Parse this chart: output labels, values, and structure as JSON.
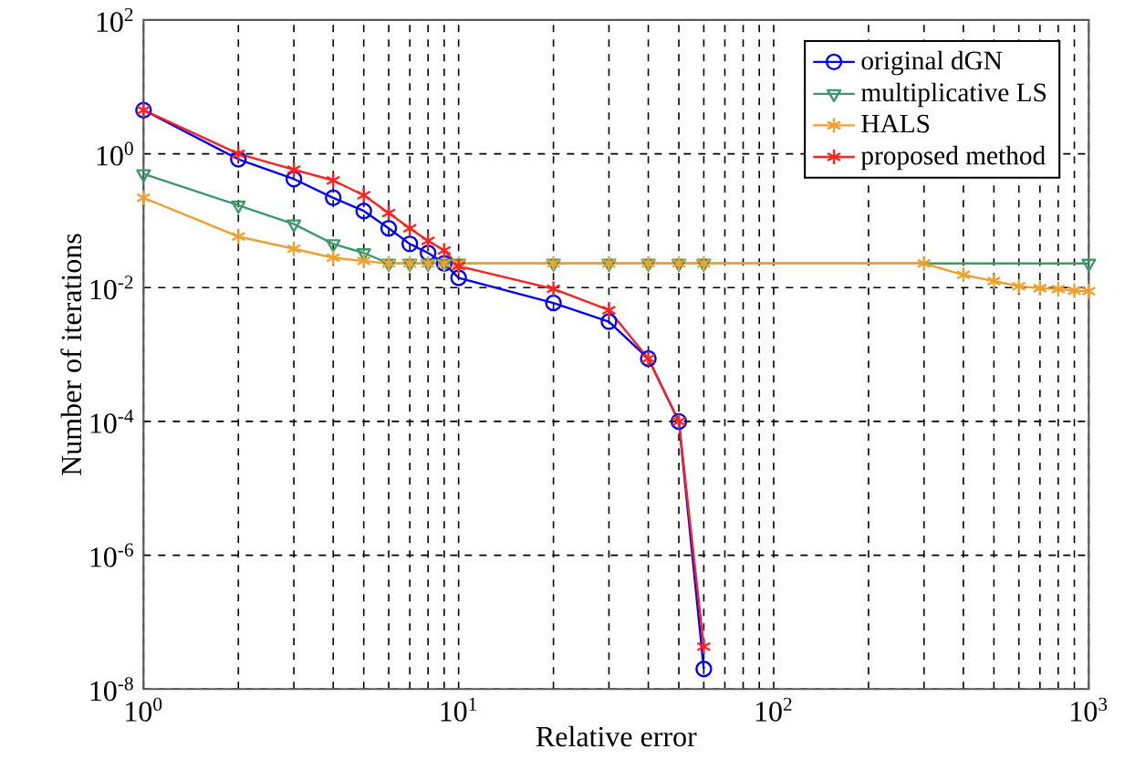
{
  "chart_data": {
    "type": "line",
    "xlabel": "Relative error",
    "ylabel": "Number of iterations",
    "log": "xy",
    "grid": true,
    "legend": "top right",
    "xlim": [
      1,
      1000
    ],
    "ylim": [
      1e-08,
      100
    ],
    "xticks": [
      {
        "value": 1,
        "label": "10$^{0}$"
      },
      {
        "value": 10,
        "label": "10$^{1}$"
      },
      {
        "value": 100,
        "label": "10$^{2}$"
      },
      {
        "value": 1000,
        "label": "10$^{3}$"
      }
    ],
    "yticks": [
      {
        "value": 1e-08,
        "label": "10$^{-8}$"
      },
      {
        "value": 1e-06,
        "label": "10$^{-6}$"
      },
      {
        "value": 0.0001,
        "label": "10$^{-4}$"
      },
      {
        "value": 0.01,
        "label": "10$^{-2}$"
      },
      {
        "value": 1,
        "label": "10$^{0}$"
      },
      {
        "value": 100,
        "label": "10$^{2}$"
      }
    ],
    "series": [
      {
        "name": "original dGN",
        "color": "#0000ff",
        "marker": "circle",
        "x": [
          1,
          2,
          3,
          4,
          5,
          6,
          7,
          8,
          9,
          10,
          20,
          30,
          40,
          50,
          60
        ],
        "values": [
          4.5,
          0.83,
          0.42,
          0.22,
          0.14,
          0.077,
          0.045,
          0.033,
          0.023,
          0.014,
          0.0059,
          0.0031,
          0.00087,
          0.0001,
          2e-08
        ]
      },
      {
        "name": "multiplicative LS",
        "color": "#3a9a6a",
        "marker": "triangle",
        "x": [
          1,
          2,
          3,
          4,
          5,
          6,
          7,
          8,
          9,
          10,
          20,
          30,
          40,
          50,
          60,
          1000
        ],
        "values": [
          0.5,
          0.17,
          0.089,
          0.045,
          0.033,
          0.023,
          0.023,
          0.023,
          0.023,
          0.023,
          0.023,
          0.023,
          0.023,
          0.023,
          0.023,
          0.023
        ]
      },
      {
        "name": "HALS",
        "color": "#f0a030",
        "marker": "cross",
        "x": [
          1,
          2,
          3,
          4,
          5,
          6,
          7,
          8,
          9,
          10,
          20,
          30,
          40,
          50,
          60,
          300,
          400,
          500,
          600,
          700,
          800,
          900,
          1000
        ],
        "values": [
          0.22,
          0.058,
          0.038,
          0.028,
          0.025,
          0.023,
          0.023,
          0.023,
          0.023,
          0.023,
          0.023,
          0.023,
          0.023,
          0.023,
          0.023,
          0.023,
          0.0155,
          0.0125,
          0.0105,
          0.0098,
          0.0095,
          0.009,
          0.0088
        ]
      },
      {
        "name": "proposed method",
        "color": "#ff2020",
        "marker": "cross",
        "x": [
          1,
          2,
          3,
          4,
          5,
          6,
          7,
          8,
          9,
          10,
          20,
          30,
          40,
          50,
          60
        ],
        "values": [
          4.5,
          1.0,
          0.58,
          0.4,
          0.24,
          0.13,
          0.077,
          0.05,
          0.036,
          0.021,
          0.0096,
          0.0046,
          0.00087,
          0.0001,
          4.3e-08
        ]
      }
    ]
  }
}
